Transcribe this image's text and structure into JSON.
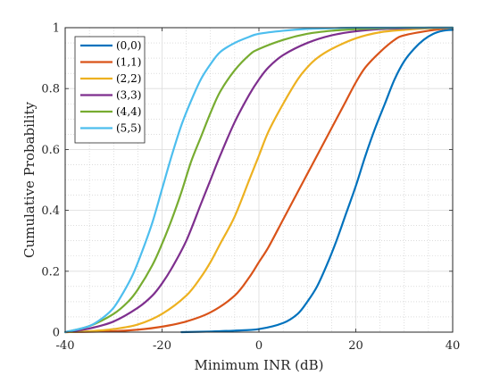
{
  "chart_data": {
    "type": "line",
    "title": "",
    "xlabel": "Minimum INR (dB)",
    "ylabel": "Cumulative Probability",
    "xlim": [
      -40,
      40
    ],
    "ylim": [
      0,
      1
    ],
    "xticks": [
      -40,
      -20,
      0,
      20,
      40
    ],
    "xtick_labels": [
      "-40",
      "-20",
      "0",
      "20",
      "40"
    ],
    "yticks": [
      0,
      0.2,
      0.4,
      0.6,
      0.8,
      1
    ],
    "ytick_labels": [
      "0",
      "0.2",
      "0.4",
      "0.6",
      "0.8",
      "1"
    ],
    "grid": true,
    "minor_grid": true,
    "legend_position": "top-left",
    "series": [
      {
        "name": "(0,0)",
        "color": "#0072BD",
        "x": [
          -16,
          -10,
          -5,
          0,
          5,
          8,
          10,
          12,
          14,
          16,
          18,
          20,
          22,
          24,
          26,
          28,
          30,
          32,
          34,
          36,
          38,
          40
        ],
        "y": [
          0,
          0.002,
          0.005,
          0.01,
          0.03,
          0.06,
          0.1,
          0.15,
          0.22,
          0.3,
          0.39,
          0.48,
          0.58,
          0.67,
          0.75,
          0.83,
          0.89,
          0.93,
          0.96,
          0.98,
          0.99,
          0.993
        ]
      },
      {
        "name": "(1,1)",
        "color": "#D95319",
        "x": [
          -40,
          -30,
          -25,
          -20,
          -15,
          -10,
          -5,
          -2,
          0,
          2,
          5,
          8,
          10,
          12,
          15,
          18,
          20,
          22,
          25,
          28,
          30,
          35,
          40
        ],
        "y": [
          0,
          0.003,
          0.008,
          0.018,
          0.035,
          0.065,
          0.12,
          0.18,
          0.23,
          0.28,
          0.37,
          0.46,
          0.52,
          0.58,
          0.67,
          0.76,
          0.82,
          0.87,
          0.92,
          0.96,
          0.975,
          0.99,
          1.0
        ]
      },
      {
        "name": "(2,2)",
        "color": "#EDB120",
        "x": [
          -40,
          -35,
          -30,
          -25,
          -20,
          -15,
          -12,
          -10,
          -8,
          -5,
          -2,
          0,
          2,
          5,
          8,
          10,
          12,
          15,
          20,
          25,
          30,
          35,
          40
        ],
        "y": [
          0,
          0.003,
          0.01,
          0.025,
          0.06,
          0.12,
          0.18,
          0.23,
          0.29,
          0.38,
          0.5,
          0.58,
          0.66,
          0.75,
          0.83,
          0.87,
          0.9,
          0.93,
          0.965,
          0.985,
          0.993,
          0.998,
          1.0
        ]
      },
      {
        "name": "(3,3)",
        "color": "#7E2F8E",
        "x": [
          -40,
          -35,
          -30,
          -25,
          -22,
          -20,
          -18,
          -15,
          -12,
          -10,
          -8,
          -5,
          -2,
          0,
          2,
          5,
          10,
          15,
          20,
          25,
          30,
          35,
          40
        ],
        "y": [
          0,
          0.012,
          0.035,
          0.08,
          0.12,
          0.16,
          0.21,
          0.3,
          0.42,
          0.5,
          0.58,
          0.69,
          0.78,
          0.83,
          0.87,
          0.91,
          0.95,
          0.975,
          0.988,
          0.995,
          0.998,
          1.0,
          1.0
        ]
      },
      {
        "name": "(4,4)",
        "color": "#77AC30",
        "x": [
          -40,
          -35,
          -30,
          -27,
          -25,
          -22,
          -20,
          -18,
          -16,
          -14,
          -12,
          -10,
          -8,
          -5,
          -2,
          0,
          5,
          10,
          15,
          20,
          25,
          30,
          40
        ],
        "y": [
          0,
          0.02,
          0.06,
          0.1,
          0.14,
          0.22,
          0.29,
          0.37,
          0.46,
          0.56,
          0.64,
          0.72,
          0.79,
          0.86,
          0.91,
          0.93,
          0.96,
          0.98,
          0.99,
          0.995,
          0.998,
          1.0,
          1.0
        ]
      },
      {
        "name": "(5,5)",
        "color": "#4DBEEE",
        "x": [
          -40,
          -35,
          -32,
          -30,
          -28,
          -26,
          -24,
          -22,
          -20,
          -18,
          -16,
          -14,
          -12,
          -10,
          -8,
          -5,
          -2,
          0,
          5,
          10,
          15,
          20,
          40
        ],
        "y": [
          0,
          0.02,
          0.05,
          0.08,
          0.13,
          0.19,
          0.27,
          0.36,
          0.47,
          0.58,
          0.68,
          0.76,
          0.83,
          0.88,
          0.92,
          0.95,
          0.97,
          0.98,
          0.99,
          0.996,
          0.998,
          1.0,
          1.0
        ]
      }
    ]
  }
}
